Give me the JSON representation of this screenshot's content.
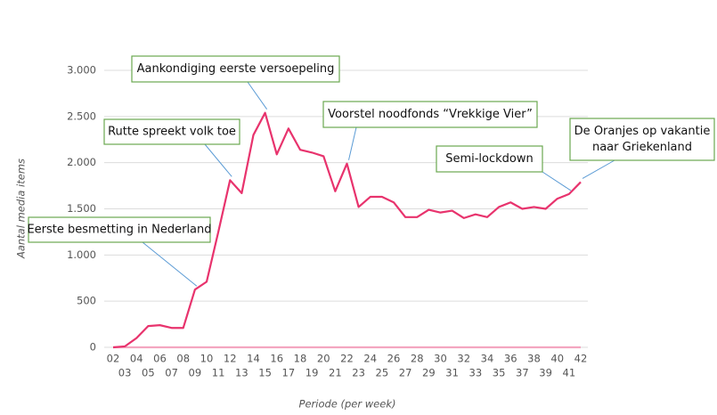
{
  "chart_data": {
    "type": "line",
    "y_label": "Aantal media items",
    "x_label": "Periode (per week)",
    "categories": [
      "02",
      "03",
      "04",
      "05",
      "06",
      "07",
      "08",
      "09",
      "10",
      "11",
      "12",
      "13",
      "14",
      "15",
      "16",
      "17",
      "18",
      "19",
      "20",
      "21",
      "22",
      "23",
      "24",
      "25",
      "26",
      "27",
      "28",
      "29",
      "30",
      "31",
      "32",
      "33",
      "34",
      "35",
      "36",
      "37",
      "38",
      "39",
      "40",
      "41",
      "42"
    ],
    "series": [
      {
        "color": "#e8336d",
        "values": [
          0,
          10,
          100,
          230,
          240,
          210,
          210,
          625,
          710,
          1250,
          1810,
          1670,
          2300,
          2540,
          2090,
          2370,
          2140,
          2110,
          2070,
          1690,
          1990,
          1520,
          1630,
          1630,
          1570,
          1410,
          1410,
          1490,
          1460,
          1480,
          1400,
          1440,
          1410,
          1520,
          1570,
          1500,
          1520,
          1500,
          1610,
          1660,
          1790
        ]
      },
      {
        "color": "#f4a6c0",
        "values": [
          0,
          0,
          0,
          0,
          0,
          0,
          0,
          0,
          0,
          0,
          0,
          0,
          0,
          0,
          0,
          0,
          0,
          0,
          0,
          0,
          0,
          0,
          0,
          0,
          0,
          0,
          0,
          0,
          0,
          0,
          0,
          0,
          0,
          0,
          0,
          0,
          0,
          0,
          0,
          0,
          0
        ]
      }
    ],
    "ylim": [
      0,
      3000
    ],
    "yticks": [
      0,
      500,
      {
        "value": 1000,
        "label": "1.000"
      },
      {
        "value": 1500,
        "label": "1.500"
      },
      {
        "value": 2000,
        "label": "2.000"
      },
      {
        "value": 2500,
        "label": "2.500"
      },
      {
        "value": 3000,
        "label": "3.000"
      }
    ],
    "grid": true,
    "annotations": [
      {
        "text": [
          "Eerste besmetting in Nederland"
        ],
        "category": "09"
      },
      {
        "text": [
          "Rutte spreekt volk toe"
        ],
        "category": "12"
      },
      {
        "text": [
          "Aankondiging eerste versoepeling"
        ],
        "category": "15"
      },
      {
        "text": [
          "Voorstel noodfonds “Vrekkige Vier”"
        ],
        "category": "22"
      },
      {
        "text": [
          "Semi-lockdown"
        ],
        "category": "41"
      },
      {
        "text": [
          "De Oranjes op vakantie",
          "naar Griekenland"
        ],
        "category": "42"
      }
    ]
  }
}
